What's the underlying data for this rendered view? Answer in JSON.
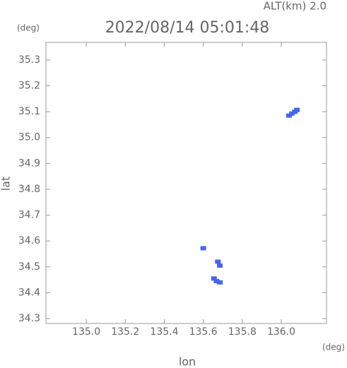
{
  "chart_data": {
    "type": "scatter",
    "title": "2022/08/14 05:01:48",
    "subtitle": "ALT(km) 2.0",
    "x_label": "lon",
    "y_label": "lat",
    "x_unit": "(deg)",
    "y_unit": "(deg)",
    "xlim": [
      134.793,
      136.232
    ],
    "ylim": [
      34.281,
      35.368
    ],
    "xticks": [
      {
        "value": 135,
        "label": "135.0"
      },
      135.2,
      135.4,
      135.6,
      135.8,
      {
        "value": 136,
        "label": "136.0"
      }
    ],
    "yticks": [
      34.3,
      34.4,
      34.5,
      34.6,
      34.7,
      34.8,
      34.9,
      {
        "value": 35,
        "label": "35.0"
      },
      35.1,
      35.2,
      35.3
    ],
    "series": [
      {
        "color": "#4466ee",
        "x": [
          136.04,
          136.055,
          136.07,
          136.08,
          135.6,
          135.675,
          135.685,
          135.655,
          135.668,
          135.685
        ],
        "y": [
          35.085,
          35.093,
          35.1,
          35.107,
          34.572,
          34.52,
          34.505,
          34.455,
          34.445,
          34.44
        ]
      }
    ]
  }
}
